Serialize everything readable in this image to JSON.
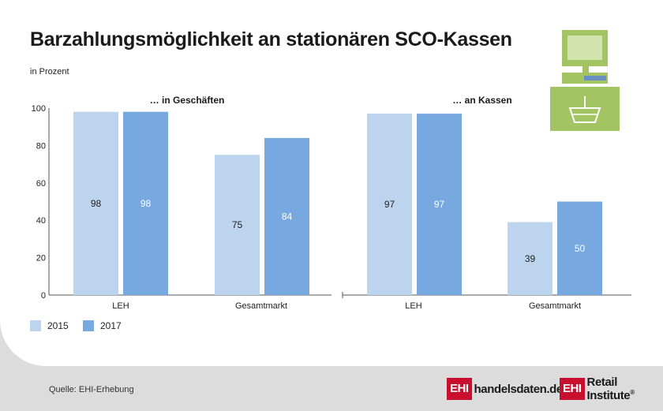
{
  "title": "Barzahlungsmöglichkeit an stationären SCO-Kassen",
  "subtitle": "in Prozent",
  "source": "Quelle: EHI-Erhebung",
  "logos": {
    "left_box": "EHI",
    "left_text": "handelsdaten.de",
    "right_box": "EHI",
    "right_text": "Retail Institute",
    "right_reg": "®"
  },
  "colors": {
    "series_2015": "#bdd4ee",
    "series_2017": "#78a8e0",
    "icon_green": "#a3c463",
    "icon_dark": "#4f6a2c",
    "axis": "#555555"
  },
  "icon": "self-checkout-terminal-icon",
  "chart_data": [
    {
      "type": "bar",
      "title": "… in Geschäften",
      "categories": [
        "LEH",
        "Gesamtmarkt"
      ],
      "series": [
        {
          "name": "2015",
          "values": [
            98,
            75
          ]
        },
        {
          "name": "2017",
          "values": [
            98,
            84
          ]
        }
      ],
      "ylim": [
        0,
        100
      ],
      "yticks": [
        0,
        20,
        40,
        60,
        80,
        100
      ],
      "grid": false,
      "legend": "bottom-left"
    },
    {
      "type": "bar",
      "title": "… an Kassen",
      "categories": [
        "LEH",
        "Gesamtmarkt"
      ],
      "series": [
        {
          "name": "2015",
          "values": [
            97,
            39
          ]
        },
        {
          "name": "2017",
          "values": [
            97,
            50
          ]
        }
      ],
      "ylim": [
        0,
        100
      ],
      "grid": false,
      "legend": "bottom-left"
    }
  ]
}
